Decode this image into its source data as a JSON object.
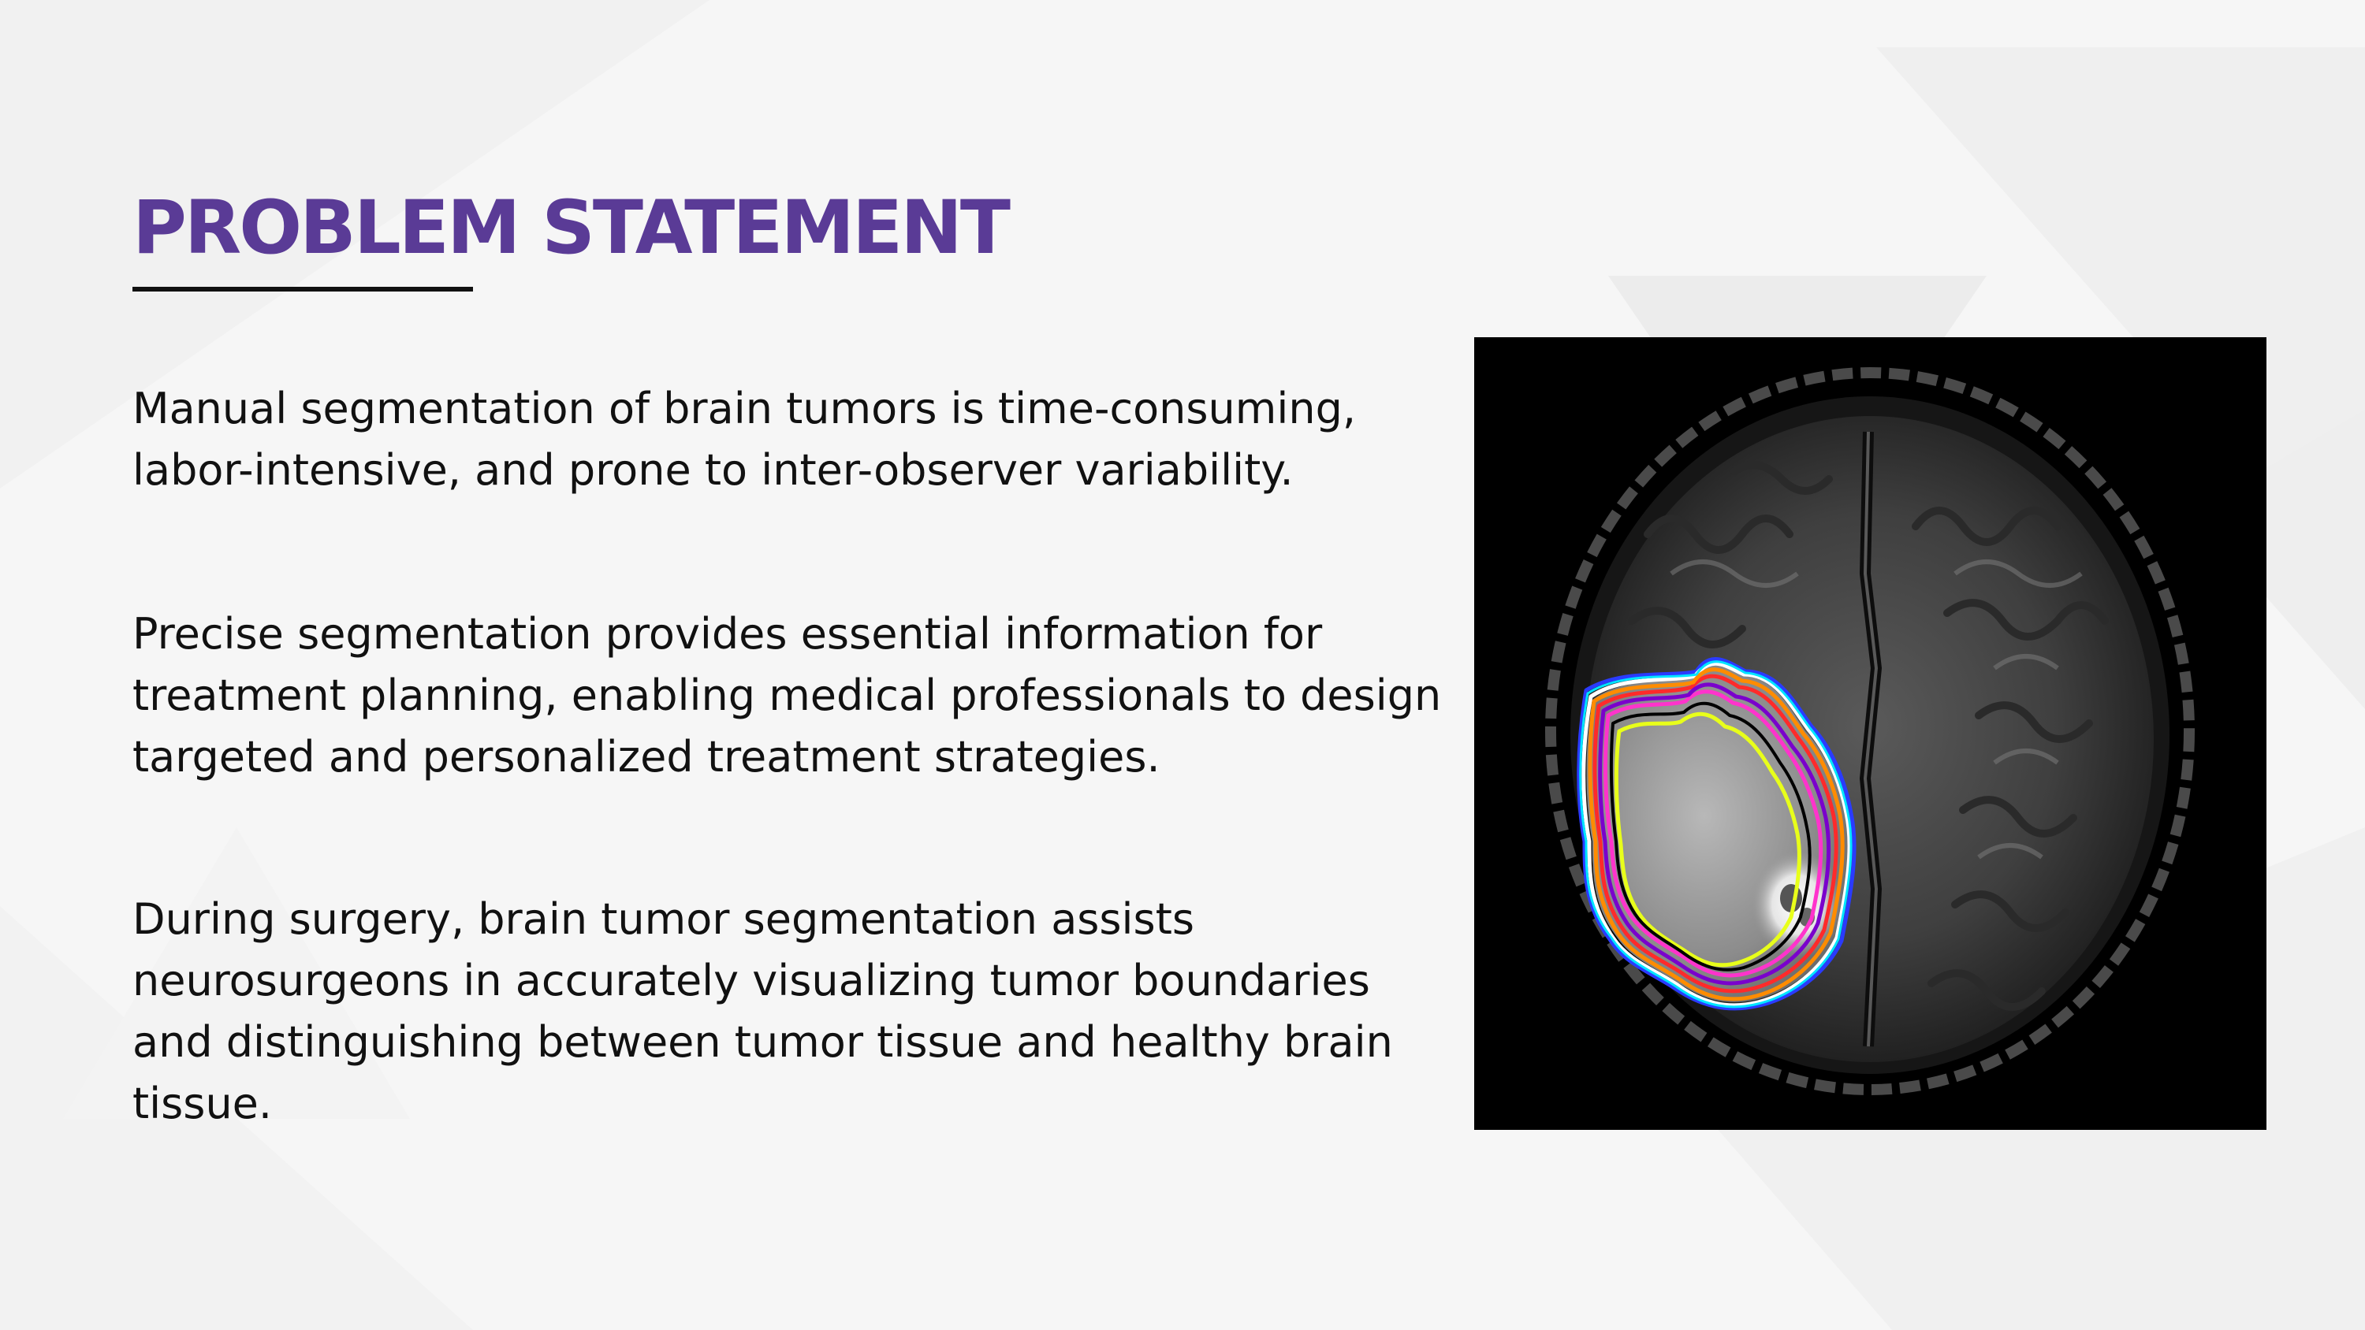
{
  "slide": {
    "title": "PROBLEM STATEMENT",
    "paragraphs": [
      "Manual segmentation of brain tumors is time-consuming, labor-intensive, and prone to inter-observer variability.",
      "Precise segmentation provides essential information for treatment planning, enabling medical professionals to design targeted and personalized treatment strategies.",
      "During surgery, brain tumor segmentation assists neurosurgeons in accurately visualizing tumor boundaries and distinguishing between tumor tissue and healthy brain tissue."
    ]
  },
  "image": {
    "subject": "axial brain MRI with tumor segmentation contours",
    "contour_colors": [
      "#2a3bff",
      "#ffffff",
      "#ff2a2a",
      "#ff33cc",
      "#e8ff1a",
      "#ff8c00",
      "#7a00cc",
      "#00e5ff",
      "#000000"
    ]
  },
  "colors": {
    "title": "#5a3b96",
    "text": "#111111",
    "background": "#f7f7f7",
    "image_background": "#000000"
  }
}
